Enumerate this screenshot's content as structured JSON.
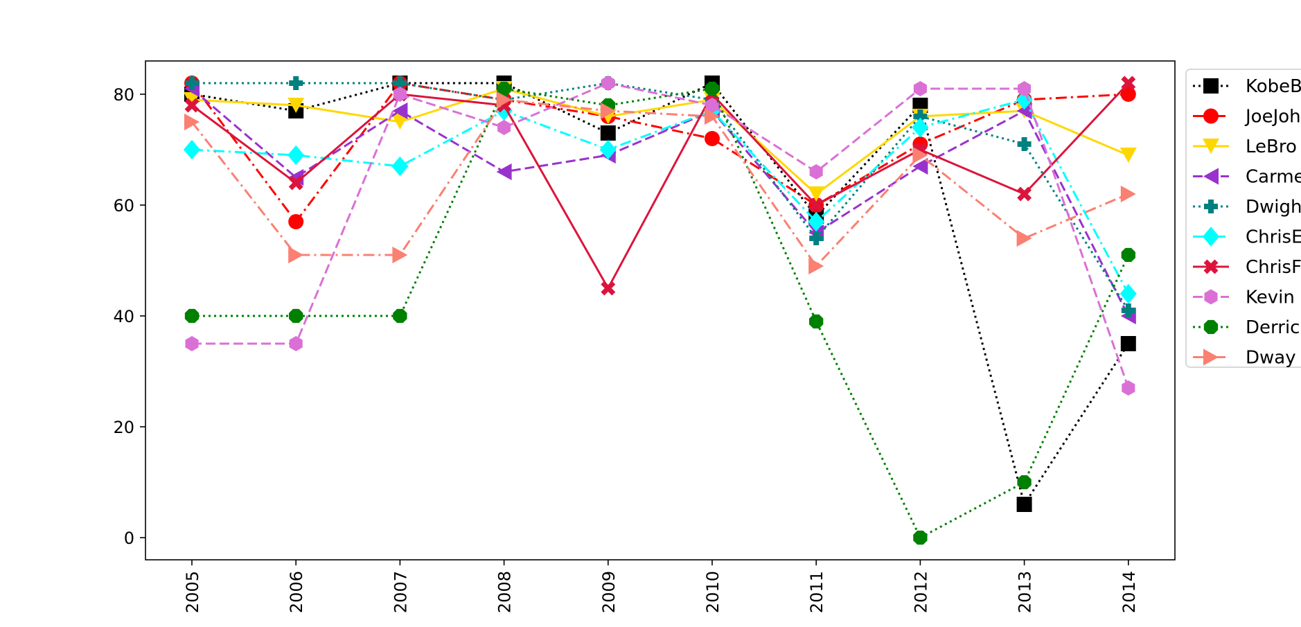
{
  "chart_data": {
    "type": "line",
    "x": [
      "2005",
      "2006",
      "2007",
      "2008",
      "2009",
      "2010",
      "2011",
      "2012",
      "2013",
      "2014"
    ],
    "ylim": [
      -4,
      86
    ],
    "yticks": [
      0,
      20,
      40,
      60,
      80
    ],
    "grid": false,
    "legend_position": "right, partially cut off",
    "series": [
      {
        "name": "KobeB",
        "color": "#000000",
        "marker": "square",
        "dash": "dotted",
        "values": [
          80,
          77,
          82,
          82,
          73,
          82,
          58,
          78,
          6,
          35
        ]
      },
      {
        "name": "JoeJoh",
        "color": "#ff0000",
        "marker": "circle",
        "dash": "dashdot",
        "values": [
          82,
          57,
          82,
          79,
          76,
          72,
          60,
          71,
          79,
          80
        ]
      },
      {
        "name": "LeBro",
        "color": "#ffd700",
        "marker": "triangle-down",
        "dash": "solid",
        "values": [
          79,
          78,
          75,
          81,
          76,
          79,
          62,
          76,
          77,
          69
        ]
      },
      {
        "name": "Carme",
        "color": "#9932cc",
        "marker": "triangle-left",
        "dash": "dashed",
        "values": [
          81,
          65,
          77,
          66,
          69,
          77,
          55,
          67,
          77,
          40
        ]
      },
      {
        "name": "Dwigh",
        "color": "#008080",
        "marker": "plus",
        "dash": "dotted",
        "values": [
          82,
          82,
          82,
          79,
          82,
          79,
          54,
          76,
          71,
          41
        ]
      },
      {
        "name": "ChrisE",
        "color": "#00ffff",
        "marker": "diamond",
        "dash": "dashdot",
        "values": [
          70,
          69,
          67,
          77,
          70,
          77,
          57,
          74,
          79,
          44
        ]
      },
      {
        "name": "ChrisF",
        "color": "#dc143c",
        "marker": "x",
        "dash": "solid",
        "values": [
          78,
          64,
          80,
          78,
          45,
          80,
          60,
          70,
          62,
          82
        ]
      },
      {
        "name": "Kevin",
        "color": "#da70d6",
        "marker": "hexagon",
        "dash": "dashed",
        "values": [
          35,
          35,
          80,
          74,
          82,
          78,
          66,
          81,
          81,
          27
        ]
      },
      {
        "name": "Derric",
        "color": "#008000",
        "marker": "octagon",
        "dash": "dotted",
        "values": [
          40,
          40,
          40,
          81,
          78,
          81,
          39,
          0,
          10,
          51
        ]
      },
      {
        "name": "Dway",
        "color": "#fa8072",
        "marker": "triangle-right",
        "dash": "dashdot",
        "values": [
          75,
          51,
          51,
          79,
          77,
          76,
          49,
          69,
          54,
          62
        ]
      }
    ]
  }
}
